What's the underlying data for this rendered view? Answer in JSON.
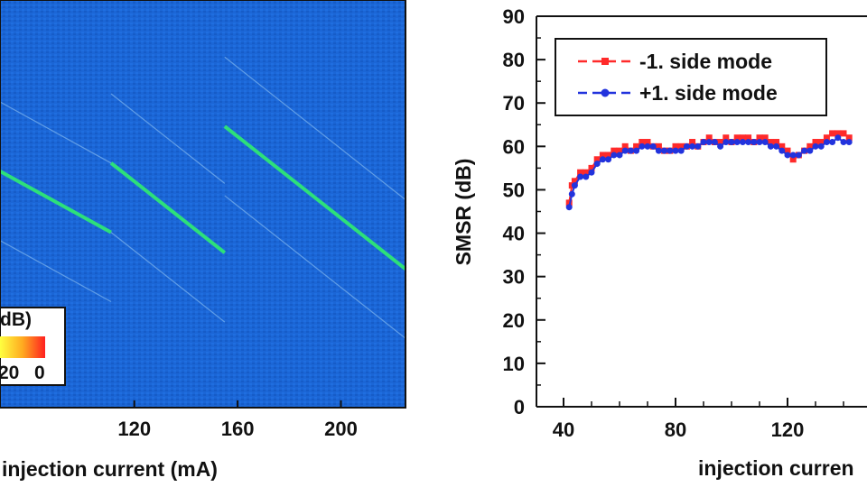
{
  "chart_data": [
    {
      "type": "heatmap",
      "xlabel": "injection current (mA)",
      "x_ticks": [
        120,
        160,
        200
      ],
      "xlim": [
        68,
        225
      ],
      "colorbar": {
        "label_fragment": "dB)",
        "tick_labels": [
          "20",
          "0"
        ]
      },
      "colors": {
        "background": "#1b66d6",
        "line": "#2de07a",
        "faint_line": "#7fb6ef"
      },
      "segments": [
        {
          "x_start": 68,
          "x_end": 111,
          "y_start_frac": 0.42,
          "y_end_frac": 0.57
        },
        {
          "x_start": 111,
          "x_end": 155,
          "y_start_frac": 0.4,
          "y_end_frac": 0.62
        },
        {
          "x_start": 155,
          "x_end": 225,
          "y_start_frac": 0.31,
          "y_end_frac": 0.66
        }
      ]
    },
    {
      "type": "scatter",
      "ylabel": "SMSR (dB)",
      "xlabel": "injection curren",
      "ylim": [
        0,
        90
      ],
      "xlim": [
        35,
        145
      ],
      "x_ticks": [
        40,
        80,
        120
      ],
      "y_ticks": [
        0,
        10,
        20,
        30,
        40,
        50,
        60,
        70,
        80,
        90
      ],
      "legend": {
        "placement": "top-left"
      },
      "series": [
        {
          "name": "-1. side mode",
          "color": "#ff2a2a",
          "points": [
            [
              42,
              47
            ],
            [
              43,
              51
            ],
            [
              44,
              52
            ],
            [
              46,
              54
            ],
            [
              48,
              54
            ],
            [
              50,
              55
            ],
            [
              52,
              57
            ],
            [
              54,
              58
            ],
            [
              56,
              58
            ],
            [
              58,
              59
            ],
            [
              60,
              59
            ],
            [
              62,
              60
            ],
            [
              64,
              59
            ],
            [
              66,
              60
            ],
            [
              68,
              61
            ],
            [
              70,
              61
            ],
            [
              72,
              60
            ],
            [
              74,
              60
            ],
            [
              76,
              59
            ],
            [
              78,
              59
            ],
            [
              80,
              60
            ],
            [
              82,
              60
            ],
            [
              84,
              60
            ],
            [
              86,
              61
            ],
            [
              88,
              60
            ],
            [
              90,
              61
            ],
            [
              92,
              62
            ],
            [
              94,
              61
            ],
            [
              96,
              61
            ],
            [
              98,
              62
            ],
            [
              100,
              61
            ],
            [
              102,
              62
            ],
            [
              104,
              62
            ],
            [
              106,
              62
            ],
            [
              108,
              61
            ],
            [
              110,
              62
            ],
            [
              112,
              62
            ],
            [
              114,
              61
            ],
            [
              116,
              61
            ],
            [
              118,
              60
            ],
            [
              120,
              59
            ],
            [
              122,
              57
            ],
            [
              124,
              58
            ],
            [
              126,
              59
            ],
            [
              128,
              60
            ],
            [
              130,
              61
            ],
            [
              132,
              61
            ],
            [
              134,
              62
            ],
            [
              136,
              63
            ],
            [
              138,
              63
            ],
            [
              140,
              63
            ],
            [
              142,
              62
            ]
          ]
        },
        {
          "name": "+1. side mode",
          "color": "#2233dd",
          "points": [
            [
              42,
              46
            ],
            [
              43,
              49
            ],
            [
              44,
              51
            ],
            [
              46,
              53
            ],
            [
              48,
              53
            ],
            [
              50,
              54
            ],
            [
              52,
              56
            ],
            [
              54,
              57
            ],
            [
              56,
              57
            ],
            [
              58,
              58
            ],
            [
              60,
              58
            ],
            [
              62,
              59
            ],
            [
              64,
              59
            ],
            [
              66,
              59
            ],
            [
              68,
              60
            ],
            [
              70,
              60
            ],
            [
              72,
              60
            ],
            [
              74,
              59
            ],
            [
              76,
              59
            ],
            [
              78,
              59
            ],
            [
              80,
              59
            ],
            [
              82,
              59
            ],
            [
              84,
              60
            ],
            [
              86,
              60
            ],
            [
              88,
              60
            ],
            [
              90,
              61
            ],
            [
              92,
              61
            ],
            [
              94,
              61
            ],
            [
              96,
              60
            ],
            [
              98,
              61
            ],
            [
              100,
              61
            ],
            [
              102,
              61
            ],
            [
              104,
              61
            ],
            [
              106,
              61
            ],
            [
              108,
              61
            ],
            [
              110,
              61
            ],
            [
              112,
              61
            ],
            [
              114,
              60
            ],
            [
              116,
              60
            ],
            [
              118,
              59
            ],
            [
              120,
              58
            ],
            [
              122,
              58
            ],
            [
              124,
              58
            ],
            [
              126,
              59
            ],
            [
              128,
              59
            ],
            [
              130,
              60
            ],
            [
              132,
              60
            ],
            [
              134,
              61
            ],
            [
              136,
              61
            ],
            [
              138,
              62
            ],
            [
              140,
              61
            ],
            [
              142,
              61
            ]
          ]
        }
      ]
    }
  ]
}
